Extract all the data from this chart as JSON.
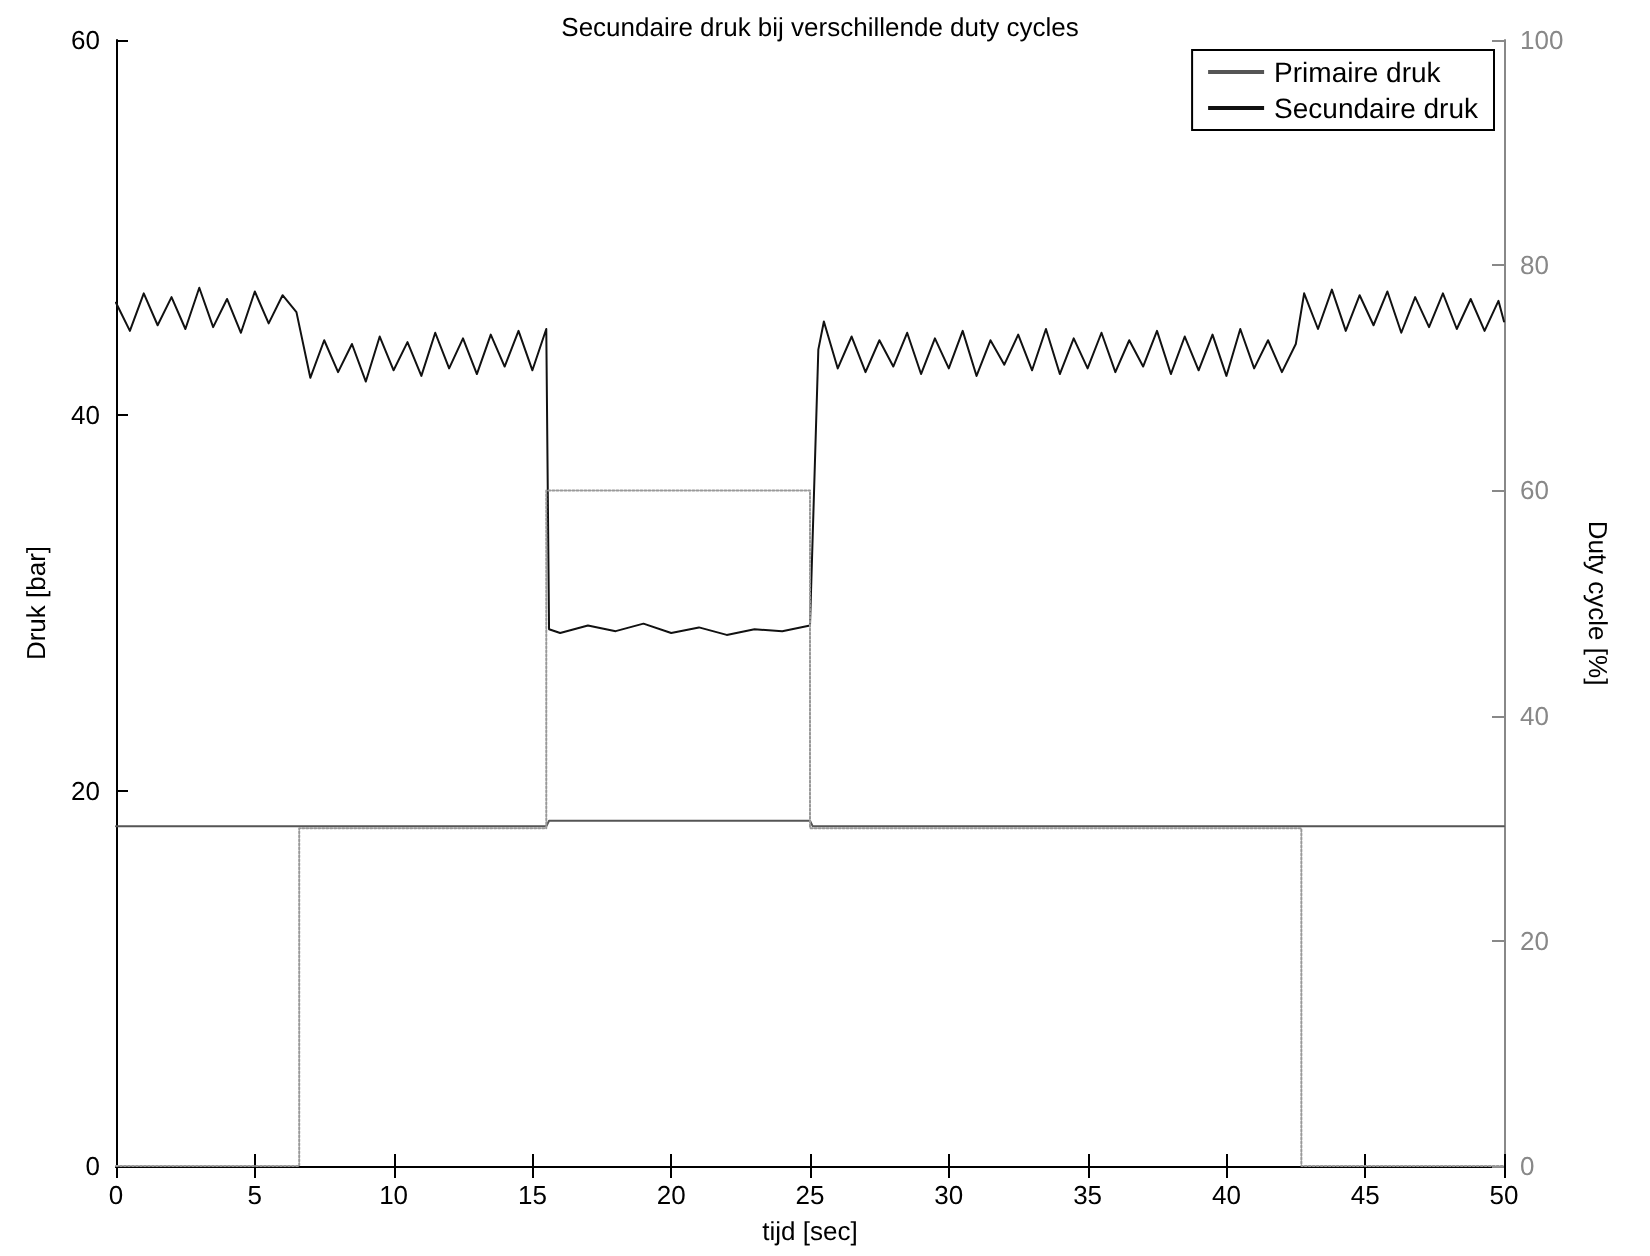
{
  "chart_data": {
    "type": "line",
    "title": "Secundaire druk bij verschillende duty cycles",
    "xlabel": "tijd [sec]",
    "ylabel": "Druk [bar]",
    "y2label": "Duty cycle [%]",
    "xlim": [
      0,
      50
    ],
    "xticks": [
      0,
      5,
      10,
      15,
      20,
      25,
      30,
      35,
      40,
      45,
      50
    ],
    "ylim": [
      0,
      60
    ],
    "yticks": [
      0,
      20,
      40,
      60
    ],
    "y2lim": [
      0,
      100
    ],
    "y2ticks": [
      0,
      20,
      40,
      60,
      80,
      100
    ],
    "grid": false,
    "legend": "top right",
    "marker": "none",
    "series": [
      {
        "name": "Primaire druk",
        "color": "#555555",
        "x": [
          0,
          15.5,
          15.6,
          25,
          25.1,
          50
        ],
        "values": [
          18.1,
          18.1,
          18.4,
          18.4,
          18.1,
          18.1
        ]
      },
      {
        "name": "Secundaire druk",
        "color": "#111111",
        "x": [
          0,
          0.5,
          1,
          1.5,
          2,
          2.5,
          3,
          3.5,
          4,
          4.5,
          5,
          5.5,
          6,
          6.5,
          7,
          7.5,
          8,
          8.5,
          9,
          9.5,
          10,
          10.5,
          11,
          11.5,
          12,
          12.5,
          13,
          13.5,
          14,
          14.5,
          15,
          15.5,
          15.6,
          16,
          17,
          18,
          19,
          20,
          21,
          22,
          23,
          24,
          25,
          25.3,
          25.5,
          26,
          26.5,
          27,
          27.5,
          28,
          28.5,
          29,
          29.5,
          30,
          30.5,
          31,
          31.5,
          32,
          32.5,
          33,
          33.5,
          34,
          34.5,
          35,
          35.5,
          36,
          36.5,
          37,
          37.5,
          38,
          38.5,
          39,
          39.5,
          40,
          40.5,
          41,
          41.5,
          42,
          42.5,
          42.8,
          43.3,
          43.8,
          44.3,
          44.8,
          45.3,
          45.8,
          46.3,
          46.8,
          47.3,
          47.8,
          48.3,
          48.8,
          49.3,
          49.8,
          50
        ],
        "values": [
          46,
          44.5,
          46.5,
          44.8,
          46.3,
          44.6,
          46.8,
          44.7,
          46.2,
          44.4,
          46.6,
          44.9,
          46.4,
          45.5,
          42,
          44,
          42.3,
          43.8,
          41.8,
          44.2,
          42.4,
          43.9,
          42.1,
          44.4,
          42.5,
          44.1,
          42.2,
          44.3,
          42.6,
          44.5,
          42.4,
          44.6,
          28.6,
          28.4,
          28.8,
          28.5,
          28.9,
          28.4,
          28.7,
          28.3,
          28.6,
          28.5,
          28.8,
          43.5,
          45,
          42.5,
          44.2,
          42.3,
          44,
          42.6,
          44.4,
          42.2,
          44.1,
          42.5,
          44.5,
          42.1,
          44,
          42.7,
          44.3,
          42.4,
          44.6,
          42.2,
          44.1,
          42.5,
          44.4,
          42.3,
          44,
          42.6,
          44.5,
          42.2,
          44.2,
          42.4,
          44.3,
          42.1,
          44.6,
          42.5,
          44,
          42.3,
          43.8,
          46.5,
          44.6,
          46.7,
          44.5,
          46.4,
          44.8,
          46.6,
          44.4,
          46.3,
          44.7,
          46.5,
          44.6,
          46.2,
          44.5,
          46.1,
          45
        ]
      },
      {
        "type": "step",
        "axis": "y2",
        "color": "#999999",
        "line_style": "dotted",
        "x": [
          0,
          6.6,
          15.5,
          25,
          42.7,
          50
        ],
        "values": [
          0,
          30,
          60,
          30,
          0,
          0
        ]
      }
    ]
  }
}
